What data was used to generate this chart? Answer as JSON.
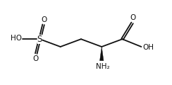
{
  "bg_color": "#ffffff",
  "line_color": "#111111",
  "lw": 1.3,
  "font_size": 7.5,
  "fig_width": 2.44,
  "fig_height": 1.2,
  "dpi": 100,
  "xlim": [
    0,
    10
  ],
  "ylim": [
    0,
    4.8
  ],
  "sx": 2.2,
  "sy": 2.6,
  "c3x": 3.45,
  "c3y": 2.15,
  "c2x": 4.7,
  "c2y": 2.6,
  "c1x": 5.95,
  "c1y": 2.15,
  "ccx": 7.2,
  "ccy": 2.6,
  "odx": 7.8,
  "ody": 3.55,
  "ohx": 8.35,
  "ohy": 2.15
}
